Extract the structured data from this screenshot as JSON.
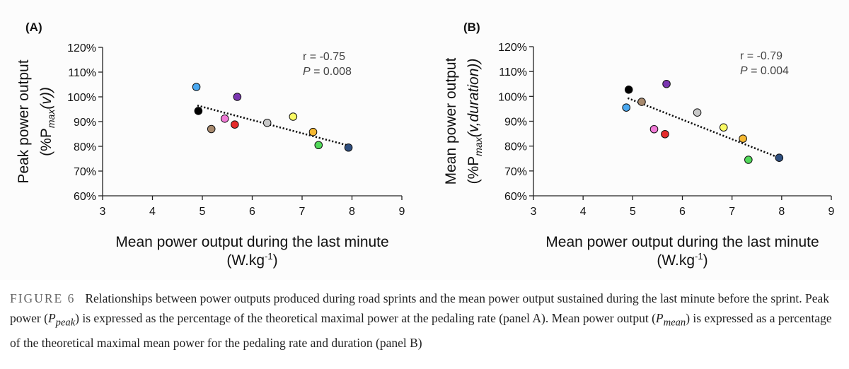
{
  "chart_data": [
    {
      "type": "scatter",
      "panel_label": "(A)",
      "ylabel_line1": "Peak power output",
      "ylabel_line2_prefix": "(%P",
      "ylabel_line2_sub": "max",
      "ylabel_line2_suffix": "(v))",
      "xlabel_line1": "Mean power output during the last minute",
      "xlabel_line2_prefix": "(W.kg",
      "xlabel_line2_sup": "-1",
      "xlabel_line2_suffix": ")",
      "stat_r": "r = -0.75",
      "stat_p_label": "P",
      "stat_p_value": " = 0.008",
      "xlim": [
        3,
        9
      ],
      "ylim": [
        60,
        120
      ],
      "xticks": [
        "3",
        "4",
        "5",
        "6",
        "7",
        "8",
        "9"
      ],
      "yticks": [
        "60%",
        "70%",
        "80%",
        "90%",
        "100%",
        "110%",
        "120%"
      ],
      "grid": false,
      "trendline": {
        "x": [
          4.9,
          7.95
        ],
        "y": [
          96.5,
          80.2
        ]
      },
      "points": [
        {
          "x": 4.88,
          "y": 104,
          "color": "#4aa8f0"
        },
        {
          "x": 4.92,
          "y": 94.3,
          "color": "#000000"
        },
        {
          "x": 5.18,
          "y": 87,
          "color": "#a88a6e"
        },
        {
          "x": 5.45,
          "y": 91.2,
          "color": "#f07ad6"
        },
        {
          "x": 5.65,
          "y": 88.8,
          "color": "#e52b2b"
        },
        {
          "x": 5.7,
          "y": 100,
          "color": "#7a35b0"
        },
        {
          "x": 6.3,
          "y": 89.5,
          "color": "#c8c8c8"
        },
        {
          "x": 6.82,
          "y": 92,
          "color": "#fafa64"
        },
        {
          "x": 7.22,
          "y": 85.8,
          "color": "#f5b832"
        },
        {
          "x": 7.33,
          "y": 80.5,
          "color": "#52d95a"
        },
        {
          "x": 7.93,
          "y": 79.5,
          "color": "#2f4f7f"
        }
      ]
    },
    {
      "type": "scatter",
      "panel_label": "(B)",
      "ylabel_line1": "Mean power output",
      "ylabel_line2_prefix": "(%P",
      "ylabel_line2_sub": "max",
      "ylabel_line2_suffix": "(v,duration))",
      "xlabel_line1": "Mean power output during the last minute",
      "xlabel_line2_prefix": "(W.kg",
      "xlabel_line2_sup": "-1",
      "xlabel_line2_suffix": ")",
      "stat_r": "r = -0.79",
      "stat_p_label": "P",
      "stat_p_value": " = 0.004",
      "xlim": [
        3,
        9
      ],
      "ylim": [
        60,
        120
      ],
      "xticks": [
        "3",
        "4",
        "5",
        "6",
        "7",
        "8",
        "9"
      ],
      "yticks": [
        "60%",
        "70%",
        "80%",
        "90%",
        "100%",
        "110%",
        "120%"
      ],
      "grid": false,
      "trendline": {
        "x": [
          4.9,
          7.95
        ],
        "y": [
          99.3,
          75.3
        ]
      },
      "points": [
        {
          "x": 4.87,
          "y": 95.5,
          "color": "#4aa8f0"
        },
        {
          "x": 4.92,
          "y": 102.7,
          "color": "#000000"
        },
        {
          "x": 5.18,
          "y": 97.8,
          "color": "#a88a6e"
        },
        {
          "x": 5.43,
          "y": 86.8,
          "color": "#f07ad6"
        },
        {
          "x": 5.65,
          "y": 84.8,
          "color": "#e52b2b"
        },
        {
          "x": 5.68,
          "y": 105,
          "color": "#7a35b0"
        },
        {
          "x": 6.3,
          "y": 93.5,
          "color": "#c8c8c8"
        },
        {
          "x": 6.83,
          "y": 87.5,
          "color": "#fafa64"
        },
        {
          "x": 7.22,
          "y": 83,
          "color": "#f5b832"
        },
        {
          "x": 7.33,
          "y": 74.5,
          "color": "#52d95a"
        },
        {
          "x": 7.95,
          "y": 75.3,
          "color": "#2f4f7f"
        }
      ]
    }
  ],
  "caption": {
    "label": "FIGURE 6",
    "t1": "Relationships between power outputs produced during road sprints and the mean power output sustained during the last minute before the sprint. Peak power (",
    "v1": "P",
    "s1": "peak",
    "t2": ") is expressed as the percentage of the theoretical maximal power at the pedaling rate (panel A). Mean power output (",
    "v2": "P",
    "s2": "mean",
    "t3": ") is expressed as a percentage of the theoretical maximal mean power for the pedaling rate and duration (panel B)"
  }
}
